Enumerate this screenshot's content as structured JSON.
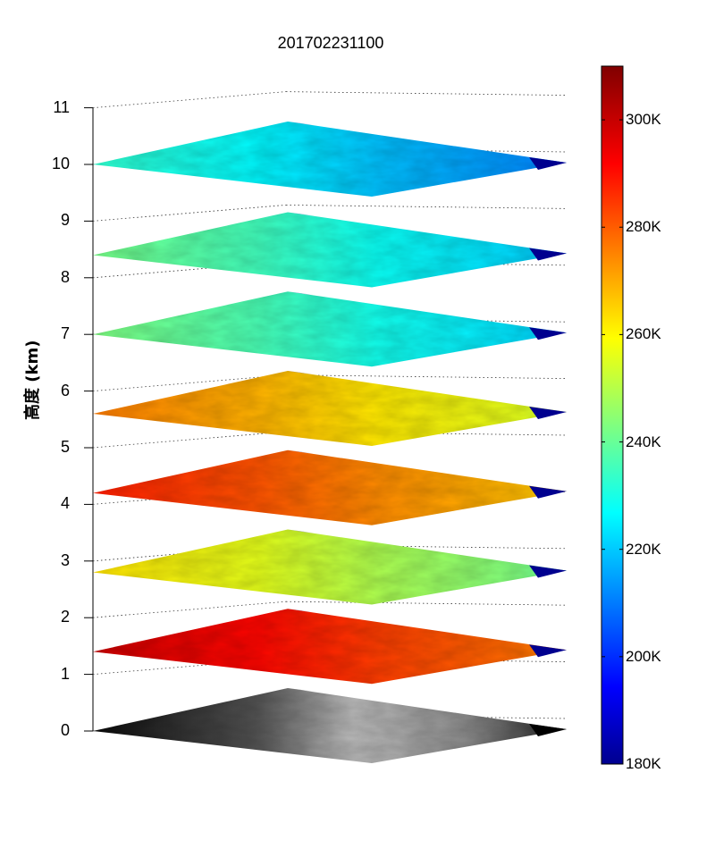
{
  "chart_data": {
    "type": "heatmap",
    "title": "201702231100",
    "ylabel": "高度 (km)",
    "z_ticks": [
      "0",
      "1",
      "2",
      "3",
      "4",
      "5",
      "6",
      "7",
      "8",
      "9",
      "10",
      "11"
    ],
    "zlim": [
      0,
      11
    ],
    "colorbar": {
      "colormap": "jet",
      "range_K": [
        180,
        310
      ],
      "ticks": [
        "180K",
        "200K",
        "220K",
        "240K",
        "260K",
        "280K",
        "300K"
      ],
      "tick_values": [
        180,
        200,
        220,
        240,
        260,
        280,
        300
      ]
    },
    "layers": [
      {
        "height_km": 0.0,
        "rendering": "grayscale",
        "dominant_K": null
      },
      {
        "height_km": 1.4,
        "rendering": "jet",
        "dominant_K": 290
      },
      {
        "height_km": 2.8,
        "rendering": "jet",
        "dominant_K": 255
      },
      {
        "height_km": 4.2,
        "rendering": "jet",
        "dominant_K": 280
      },
      {
        "height_km": 5.6,
        "rendering": "jet",
        "dominant_K": 268
      },
      {
        "height_km": 7.0,
        "rendering": "jet",
        "dominant_K": 235
      },
      {
        "height_km": 8.4,
        "rendering": "jet",
        "dominant_K": 234
      },
      {
        "height_km": 10.0,
        "rendering": "jet",
        "dominant_K": 225
      }
    ],
    "grid": true
  }
}
